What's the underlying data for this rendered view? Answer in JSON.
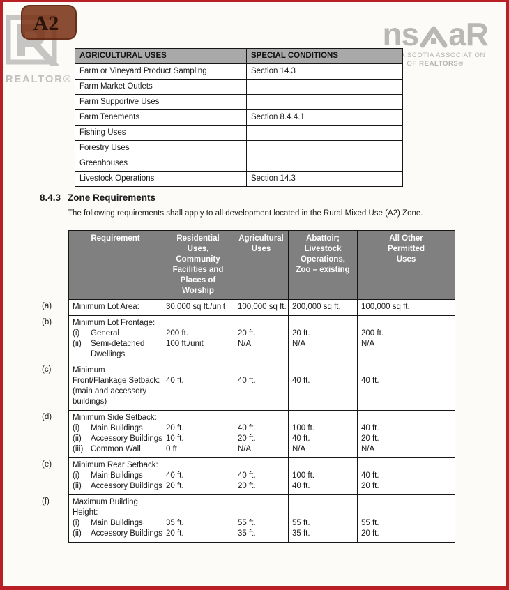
{
  "page": {
    "badge_label": "A2",
    "realtor_logo_text": "REALTOR®",
    "nsar": {
      "wordmark_left": "ns",
      "wordmark_right": "aR",
      "tagline_line1": "NOVA SCOTIA ASSOCIATION",
      "tagline_line2_prefix": "OF ",
      "tagline_line2_bold": "REALTORS®"
    }
  },
  "colors": {
    "frame_red": "#b92025",
    "badge_brown": "#752d10",
    "agri_header_gray": "#a9a9a9",
    "zone_header_gray": "#808080",
    "logo_gray": "#bab8b6"
  },
  "section": {
    "number": "8.4.3",
    "title": "Zone Requirements",
    "intro": "The following requirements shall apply to all development located in the Rural Mixed Use (A2) Zone."
  },
  "agricultural_table": {
    "headers": [
      "AGRICULTURAL USES",
      "SPECIAL CONDITIONS"
    ],
    "rows": [
      [
        "Farm or Vineyard Product Sampling",
        "Section 14.3"
      ],
      [
        "Farm Market Outlets",
        ""
      ],
      [
        "Farm Supportive Uses",
        ""
      ],
      [
        "Farm Tenements",
        "Section 8.4.4.1"
      ],
      [
        "Fishing Uses",
        ""
      ],
      [
        "Forestry Uses",
        ""
      ],
      [
        "Greenhouses",
        ""
      ],
      [
        "Livestock Operations",
        "Section 14.3"
      ]
    ]
  },
  "zone_table": {
    "headers": [
      [
        "Requirement"
      ],
      [
        "Residential",
        "Uses,",
        "Community",
        "Facilities and",
        "Places of",
        "Worship"
      ],
      [
        "Agricultural",
        "Uses"
      ],
      [
        "Abattoir;",
        "Livestock",
        "Operations,",
        "Zoo – existing"
      ],
      [
        "All Other",
        "Permitted",
        "Uses"
      ]
    ],
    "rows": [
      {
        "label": "(a)",
        "req": {
          "lines": [
            {
              "t": "Minimum Lot Area:"
            }
          ]
        },
        "vals": [
          [
            "30,000 sq ft./unit"
          ],
          [
            "100,000 sq ft."
          ],
          [
            "200,000 sq ft."
          ],
          [
            "100,000 sq ft."
          ]
        ]
      },
      {
        "label": "(b)",
        "req": {
          "lines": [
            {
              "t": "Minimum Lot Frontage:"
            },
            {
              "n": "(i)",
              "t": "General"
            },
            {
              "n": "(ii)",
              "t": "Semi-detached"
            },
            {
              "t": "Dwellings",
              "ind": 1
            }
          ]
        },
        "vals": [
          [
            "",
            "200 ft.",
            "100 ft./unit"
          ],
          [
            "",
            "20 ft.",
            "N/A"
          ],
          [
            "",
            "20 ft.",
            "N/A"
          ],
          [
            "",
            "200 ft.",
            "N/A"
          ]
        ]
      },
      {
        "label": "(c)",
        "req": {
          "lines": [
            {
              "t": "Minimum"
            },
            {
              "t": "Front/Flankage Setback:"
            },
            {
              "t": "(main and accessory"
            },
            {
              "t": "buildings)"
            }
          ]
        },
        "vals": [
          [
            "",
            "40 ft."
          ],
          [
            "",
            "40 ft."
          ],
          [
            "",
            "40 ft."
          ],
          [
            "",
            "40 ft."
          ]
        ]
      },
      {
        "label": "(d)",
        "req": {
          "lines": [
            {
              "t": "Minimum Side Setback:"
            },
            {
              "n": "(i)",
              "t": "Main Buildings"
            },
            {
              "n": "(ii)",
              "t": "Accessory Buildings"
            },
            {
              "n": "(iii)",
              "t": "Common Wall"
            }
          ]
        },
        "vals": [
          [
            "",
            "20 ft.",
            "10 ft.",
            "0 ft."
          ],
          [
            "",
            "40 ft.",
            "20 ft.",
            "N/A"
          ],
          [
            "",
            "100 ft.",
            "40 ft.",
            "N/A"
          ],
          [
            "",
            "40 ft.",
            "20 ft.",
            "N/A"
          ]
        ]
      },
      {
        "label": "(e)",
        "req": {
          "lines": [
            {
              "t": "Minimum Rear Setback:"
            },
            {
              "n": "(i)",
              "t": "Main Buildings"
            },
            {
              "n": "(ii)",
              "t": "Accessory Buildings"
            }
          ]
        },
        "vals": [
          [
            "",
            "40 ft.",
            "20 ft."
          ],
          [
            "",
            "40 ft.",
            "20 ft."
          ],
          [
            "",
            "100 ft.",
            "40 ft."
          ],
          [
            "",
            "40 ft.",
            "20 ft."
          ]
        ]
      },
      {
        "label": "(f)",
        "req": {
          "lines": [
            {
              "t": "Maximum Building"
            },
            {
              "t": "Height:"
            },
            {
              "n": "(i)",
              "t": "Main Buildings"
            },
            {
              "n": "(ii)",
              "t": "Accessory Buildings"
            }
          ]
        },
        "vals": [
          [
            "",
            "",
            "35 ft.",
            "20 ft."
          ],
          [
            "",
            "",
            "55 ft.",
            "35 ft."
          ],
          [
            "",
            "",
            "55 ft.",
            "35 ft."
          ],
          [
            "",
            "",
            "55 ft.",
            "20 ft."
          ]
        ]
      }
    ]
  }
}
